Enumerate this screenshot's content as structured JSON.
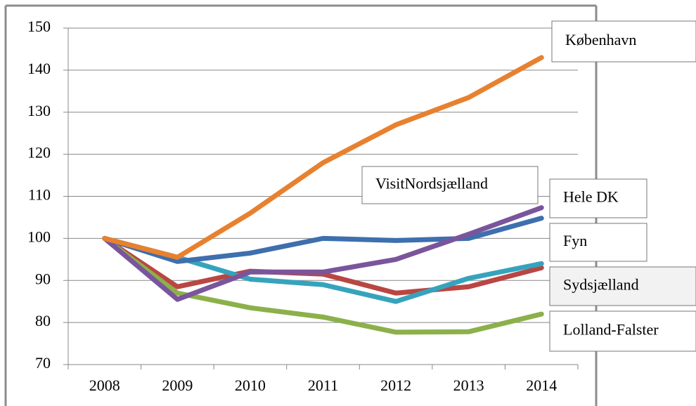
{
  "chart_data": {
    "type": "line",
    "categories": [
      "2008",
      "2009",
      "2010",
      "2011",
      "2012",
      "2013",
      "2014"
    ],
    "series": [
      {
        "name": "København",
        "color": "#e8812f",
        "values": [
          100,
          95.5,
          106,
          118,
          127,
          133.5,
          143
        ]
      },
      {
        "name": "VisitNordsjælland",
        "color": "#7a559c",
        "values": [
          100,
          85.5,
          92,
          92,
          95,
          101,
          107.3
        ]
      },
      {
        "name": "Hele DK",
        "color": "#3e6fae",
        "values": [
          100,
          94.5,
          96.5,
          100,
          99.5,
          100,
          104.8
        ]
      },
      {
        "name": "Fyn",
        "color": "#36a3bd",
        "values": [
          100,
          95.5,
          90.3,
          89,
          85,
          90.5,
          94
        ]
      },
      {
        "name": "Sydsjælland",
        "color": "#b94643",
        "values": [
          100,
          88.5,
          92.2,
          91.5,
          87,
          88.5,
          93
        ]
      },
      {
        "name": "Lolland-Falster",
        "color": "#8cb04a",
        "values": [
          100,
          87,
          83.5,
          81.3,
          77.7,
          77.8,
          82
        ]
      }
    ],
    "ylim": [
      70,
      150
    ],
    "yticks": [
      70,
      80,
      90,
      100,
      110,
      120,
      130,
      140,
      150
    ],
    "grid": true
  }
}
